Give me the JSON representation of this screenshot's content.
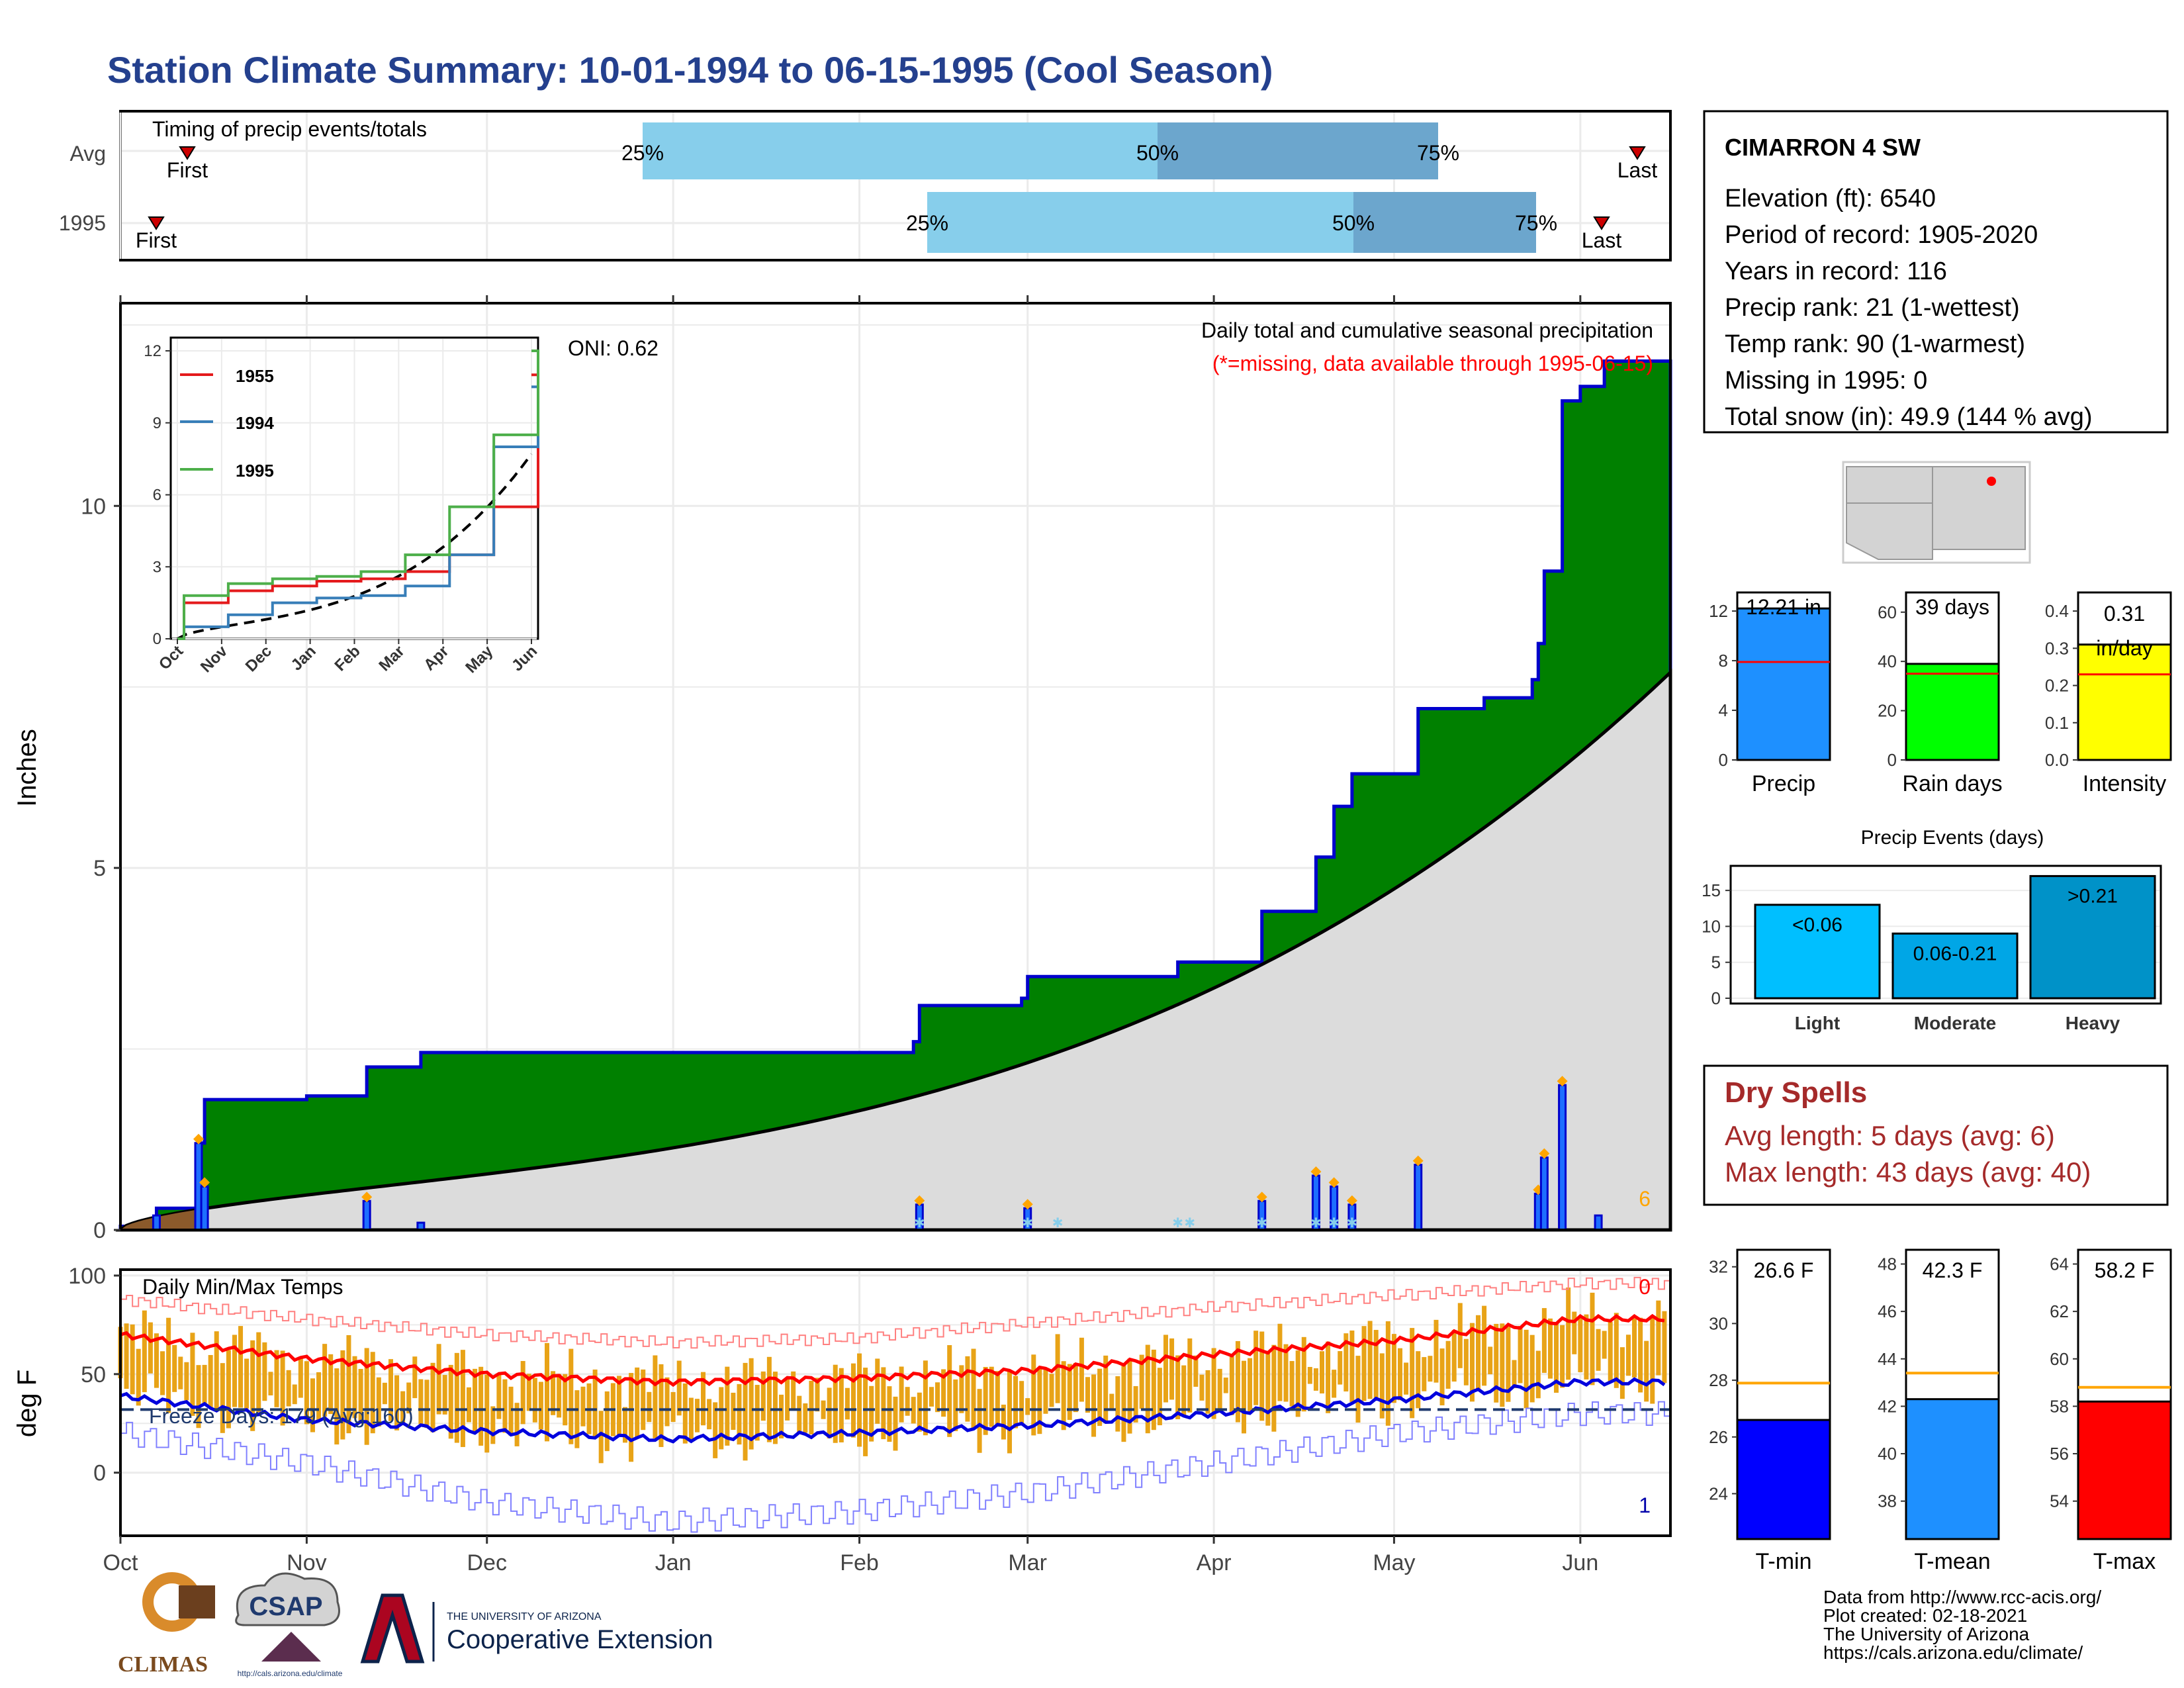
{
  "title": "Station Climate Summary: 10-01-1994 to 06-15-1995 (Cool Season)",
  "timing": {
    "label": "Timing of precip events/totals",
    "rows": [
      "Avg",
      "1995"
    ],
    "first": "First",
    "last": "Last",
    "pct": [
      "25%",
      "50%",
      "75%"
    ]
  },
  "precip_panel": {
    "ylabel": "Inches",
    "oni": "ONI: 0.62",
    "caption": "Daily total and cumulative seasonal precipitation",
    "missing_note": "(*=missing, data available through 1995-06-15)",
    "corner_count": "6",
    "yticks": [
      "0",
      "5",
      "10"
    ]
  },
  "inset": {
    "yticks": [
      "0",
      "3",
      "6",
      "9",
      "12"
    ],
    "xticks": [
      "Oct",
      "Nov",
      "Dec",
      "Jan",
      "Feb",
      "Mar",
      "Apr",
      "May",
      "Jun"
    ],
    "legend": [
      "1955",
      "1994",
      "1995"
    ]
  },
  "temp_panel": {
    "ylabel": "deg F",
    "label": "Daily Min/Max Temps",
    "freeze": "Freeze Days: 179 (Avg:160)",
    "count_top": "0",
    "count_bottom": "1",
    "yticks": [
      "0",
      "50",
      "100"
    ]
  },
  "months": [
    "Oct",
    "Nov",
    "Dec",
    "Jan",
    "Feb",
    "Mar",
    "Apr",
    "May",
    "Jun"
  ],
  "station": {
    "name": "CIMARRON 4 SW",
    "lines": [
      "Elevation (ft): 6540",
      "Period of record: 1905-2020",
      "Years in record: 116",
      "Precip rank: 21 (1-wettest)",
      "Temp rank: 90 (1-warmest)",
      "Missing in 1995: 0",
      "Total snow (in): 49.9 (144 % avg)"
    ]
  },
  "mini_bars": [
    {
      "name": "Precip",
      "value_label": "12.21 in",
      "value": 12.21,
      "avg": 7.9,
      "ymax": 13.5,
      "ticks": [
        "0",
        "4",
        "8",
        "12"
      ],
      "color": "#1e90ff"
    },
    {
      "name": "Rain days",
      "value_label": "39 days",
      "value": 39,
      "avg": 35,
      "ymax": 68,
      "ticks": [
        "0",
        "20",
        "40",
        "60"
      ],
      "color": "#00ff00"
    },
    {
      "name": "Intensity",
      "value_label": "0.31 in/day",
      "value": 0.31,
      "avg": 0.23,
      "ymax": 0.45,
      "ticks": [
        "0.0",
        "0.1",
        "0.2",
        "0.3",
        "0.4"
      ],
      "color": "#ffff00"
    }
  ],
  "precip_events": {
    "title": "Precip Events (days)",
    "categories": [
      "Light",
      "Moderate",
      "Heavy"
    ],
    "labels": [
      "<0.06",
      "0.06-0.21",
      ">0.21"
    ],
    "values": [
      13,
      9,
      17
    ],
    "ticks": [
      "0",
      "5",
      "10",
      "15"
    ]
  },
  "dry_spells": {
    "title": "Dry Spells",
    "avg": "Avg length: 5 days (avg: 6)",
    "max": "Max length: 43 days (avg: 40)"
  },
  "temp_bars": [
    {
      "name": "T-min",
      "value_label": "26.6 F",
      "value": 26.6,
      "avg": 27.9,
      "ticks": [
        "24",
        "26",
        "28",
        "30",
        "32"
      ],
      "color": "#0000ff"
    },
    {
      "name": "T-mean",
      "value_label": "42.3 F",
      "value": 42.3,
      "avg": 43.4,
      "ticks": [
        "38",
        "40",
        "42",
        "44",
        "46",
        "48"
      ],
      "color": "#1e90ff"
    },
    {
      "name": "T-max",
      "value_label": "58.2 F",
      "value": 58.2,
      "avg": 58.8,
      "ticks": [
        "54",
        "56",
        "58",
        "60",
        "62",
        "64"
      ],
      "color": "#ff0000"
    }
  ],
  "footer": {
    "lines": [
      "Data from http://www.rcc-acis.org/",
      "Plot created: 02-18-2021",
      "The University of Arizona",
      "https://cals.arizona.edu/climate/"
    ],
    "logos": {
      "climas": "CLIMAS",
      "csap": "CSAP",
      "csap_url": "http://cals.arizona.edu/climate",
      "ua_small": "THE UNIVERSITY OF ARIZONA",
      "ua_big": "Cooperative Extension"
    }
  },
  "chart_data": [
    {
      "type": "bar",
      "title": "Timing of precip events/totals",
      "note": "Horizontal bars show timing of 25%/50%/75% of seasonal precipitation",
      "series": [
        {
          "name": "Avg",
          "first": "1994-10-03",
          "p25": "1994-12-28",
          "p50": "1995-03-01",
          "p75": "1995-04-16",
          "last": "1995-06-11"
        },
        {
          "name": "1995",
          "first": "1994-10-01",
          "p25": "1995-02-12",
          "p50": "1995-04-24",
          "p75": "1995-05-24",
          "last": "1995-06-05"
        }
      ]
    },
    {
      "type": "area",
      "title": "Daily total and cumulative seasonal precipitation",
      "ylabel": "Inches",
      "ylim": [
        0,
        12.8
      ],
      "cumulative_1995_steps": [
        [
          "1994-10-01",
          0.05
        ],
        [
          "1994-10-07",
          0.3
        ],
        [
          "1994-10-14",
          1.2
        ],
        [
          "1994-10-15",
          1.8
        ],
        [
          "1994-11-01",
          1.85
        ],
        [
          "1994-11-11",
          2.25
        ],
        [
          "1994-11-20",
          2.45
        ],
        [
          "1995-02-10",
          2.6
        ],
        [
          "1995-02-11",
          3.1
        ],
        [
          "1995-02-28",
          3.2
        ],
        [
          "1995-03-01",
          3.5
        ],
        [
          "1995-03-26",
          3.7
        ],
        [
          "1995-04-09",
          4.4
        ],
        [
          "1995-04-18",
          5.15
        ],
        [
          "1995-04-21",
          5.85
        ],
        [
          "1995-04-24",
          6.3
        ],
        [
          "1995-05-05",
          7.2
        ],
        [
          "1995-05-16",
          7.35
        ],
        [
          "1995-05-24",
          7.6
        ],
        [
          "1995-05-25",
          8.1
        ],
        [
          "1995-05-26",
          9.1
        ],
        [
          "1995-05-29",
          11.45
        ],
        [
          "1995-06-01",
          11.65
        ],
        [
          "1995-06-05",
          12.0
        ]
      ],
      "cumulative_avg_end": 7.7,
      "daily_precip": [
        [
          "1994-10-07",
          0.2
        ],
        [
          "1994-10-14",
          1.2
        ],
        [
          "1994-10-15",
          0.6
        ],
        [
          "1994-11-11",
          0.4
        ],
        [
          "1994-11-20",
          0.1
        ],
        [
          "1995-02-11",
          0.35
        ],
        [
          "1995-03-01",
          0.3
        ],
        [
          "1995-04-09",
          0.4
        ],
        [
          "1995-04-18",
          0.75
        ],
        [
          "1995-04-21",
          0.6
        ],
        [
          "1995-04-24",
          0.35
        ],
        [
          "1995-05-05",
          0.9
        ],
        [
          "1995-05-25",
          0.5
        ],
        [
          "1995-05-26",
          1.0
        ],
        [
          "1995-05-29",
          2.0
        ],
        [
          "1995-06-04",
          0.2
        ]
      ]
    },
    {
      "type": "line",
      "title": "Cumulative precipitation (inset)",
      "x": [
        "Oct",
        "Nov",
        "Dec",
        "Jan",
        "Feb",
        "Mar",
        "Apr",
        "May",
        "Jun"
      ],
      "ylim": [
        0,
        12
      ],
      "series": [
        {
          "name": "1955",
          "values": [
            1.5,
            2.0,
            2.2,
            2.4,
            2.5,
            2.8,
            3.5,
            5.5,
            11.0
          ]
        },
        {
          "name": "1994",
          "values": [
            0.5,
            1.0,
            1.5,
            1.7,
            1.8,
            2.2,
            3.5,
            8.0,
            10.5
          ]
        },
        {
          "name": "1995",
          "values": [
            1.8,
            2.3,
            2.5,
            2.6,
            2.8,
            3.5,
            5.5,
            8.5,
            12.0
          ]
        }
      ]
    },
    {
      "type": "line",
      "title": "Daily Min/Max Temps",
      "ylabel": "deg F",
      "ylim": [
        -32,
        103
      ],
      "x": [
        "Oct",
        "Nov",
        "Dec",
        "Jan",
        "Feb",
        "Mar",
        "Apr",
        "May",
        "Jun"
      ],
      "series": [
        {
          "name": "Avg max",
          "values": [
            70,
            58,
            50,
            46,
            48,
            52,
            60,
            67,
            78
          ]
        },
        {
          "name": "Avg min",
          "values": [
            39,
            27,
            21,
            17,
            20,
            24,
            30,
            37,
            46
          ]
        },
        {
          "name": "Record max",
          "values": [
            88,
            78,
            70,
            66,
            68,
            76,
            84,
            90,
            96
          ]
        },
        {
          "name": "Record min",
          "values": [
            20,
            5,
            -15,
            -25,
            -20,
            -10,
            5,
            20,
            30
          ]
        }
      ],
      "freeze_line": 32
    },
    {
      "type": "bar",
      "title": "Precip Events (days)",
      "categories": [
        "Light",
        "Moderate",
        "Heavy"
      ],
      "values": [
        13,
        9,
        17
      ]
    }
  ]
}
